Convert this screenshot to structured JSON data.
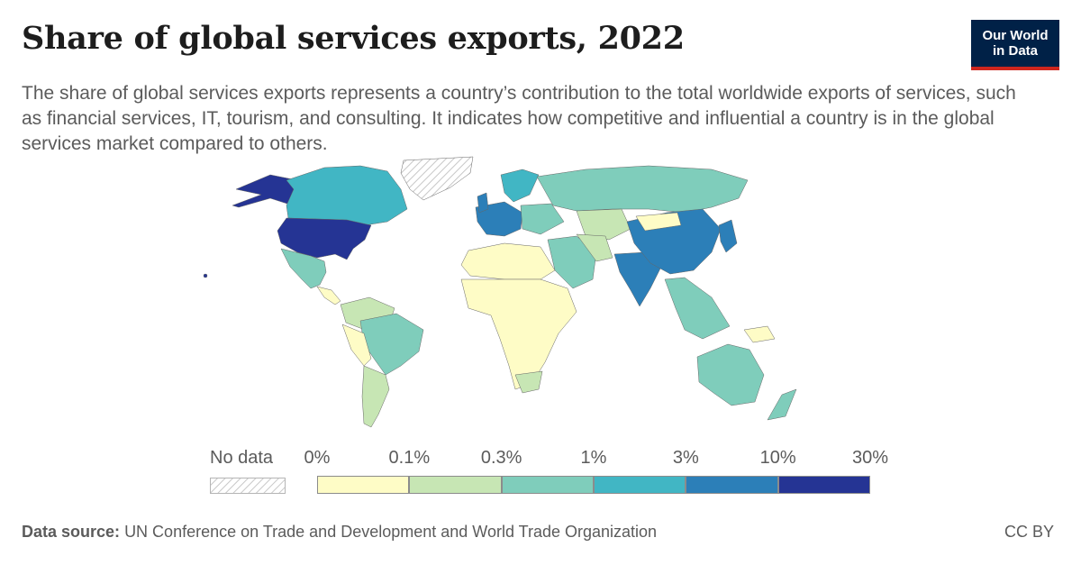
{
  "header": {
    "title": "Share of global services exports, 2022",
    "subtitle": "The share of global services exports represents a country’s contribution to the total worldwide exports of services, such as financial services, IT, tourism, and consulting. It indicates how competitive and influential a country is in the global services market compared to others."
  },
  "logo": {
    "line1": "Our World",
    "line2": "in Data"
  },
  "legend": {
    "no_data_label": "No data",
    "ticks": [
      "0%",
      "0.1%",
      "0.3%",
      "1%",
      "3%",
      "10%",
      "30%"
    ],
    "bins": [
      {
        "color": "#fefcc6"
      },
      {
        "color": "#c7e6b4"
      },
      {
        "color": "#7fcdbb"
      },
      {
        "color": "#41b6c4"
      },
      {
        "color": "#2c7fb8"
      },
      {
        "color": "#253494"
      }
    ]
  },
  "footer": {
    "source_label": "Data source:",
    "source_text": "UN Conference on Trade and Development and World Trade Organization",
    "license": "CC BY"
  },
  "map_colors": {
    "us": "#253494",
    "canada": "#41b6c4",
    "alaska": "#253494",
    "greenland": "no-data",
    "mexico": "#7fcdbb",
    "china": "#2c7fb8",
    "india": "#2c7fb8",
    "russia": "#7fcdbb",
    "africa": "#fefcc6",
    "brazil": "#7fcdbb",
    "australia": "#7fcdbb",
    "western_europe": "#2c7fb8"
  }
}
